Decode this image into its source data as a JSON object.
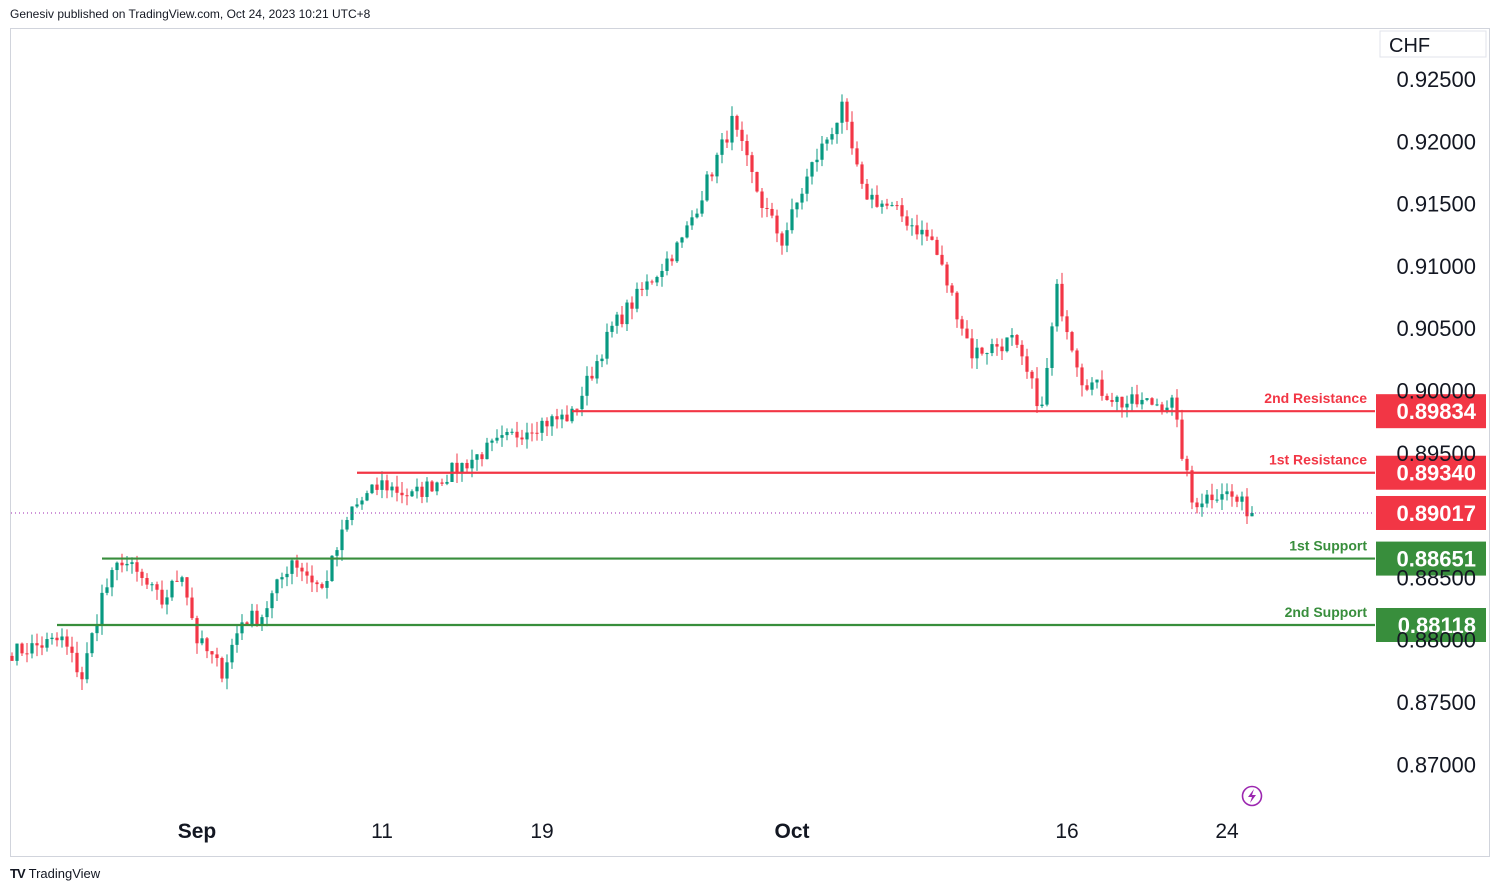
{
  "header": {
    "publisher_text": "Genesiv published on TradingView.com, Oct 24, 2023 10:21 UTC+8"
  },
  "footer": {
    "brand": "TradingView",
    "logo_icon": "tradingview-logo-icon"
  },
  "colors": {
    "up": "#089981",
    "down": "#f23645",
    "resistance": "#f23645",
    "support": "#388e3c",
    "last_price": "#f23645"
  },
  "chart_data": {
    "type": "candlestick",
    "currency_label": "CHF",
    "y_ticks": [
      "0.92500",
      "0.92000",
      "0.91500",
      "0.91000",
      "0.90500",
      "0.90000",
      "0.89500",
      "0.88500",
      "0.88000",
      "0.87500",
      "0.87000"
    ],
    "ylim": [
      0.868,
      0.9265
    ],
    "x_ticks": [
      {
        "label": "Sep",
        "bold": true,
        "bar": 37
      },
      {
        "label": "11",
        "bold": false,
        "bar": 74
      },
      {
        "label": "19",
        "bold": false,
        "bar": 106
      },
      {
        "label": "Oct",
        "bold": true,
        "bar": 156
      },
      {
        "label": "16",
        "bold": false,
        "bar": 211
      },
      {
        "label": "24",
        "bold": false,
        "bar": 243
      }
    ],
    "levels": [
      {
        "name": "2nd Resistance",
        "value": "0.89834",
        "kind": "resistance"
      },
      {
        "name": "1st Resistance",
        "value": "0.89340",
        "kind": "resistance"
      },
      {
        "name": "1st Support",
        "value": "0.88651",
        "kind": "support"
      },
      {
        "name": "2nd Support",
        "value": "0.88118",
        "kind": "support"
      }
    ],
    "last_price": "0.89017",
    "anchors": [
      [
        0,
        0.879
      ],
      [
        10,
        0.88
      ],
      [
        14,
        0.877
      ],
      [
        18,
        0.8835
      ],
      [
        22,
        0.8865
      ],
      [
        30,
        0.883
      ],
      [
        34,
        0.8855
      ],
      [
        37,
        0.88
      ],
      [
        42,
        0.8775
      ],
      [
        46,
        0.8815
      ],
      [
        50,
        0.882
      ],
      [
        56,
        0.8865
      ],
      [
        62,
        0.884
      ],
      [
        68,
        0.8905
      ],
      [
        74,
        0.8925
      ],
      [
        80,
        0.8915
      ],
      [
        86,
        0.893
      ],
      [
        94,
        0.895
      ],
      [
        104,
        0.8972
      ],
      [
        112,
        0.898
      ],
      [
        120,
        0.905
      ],
      [
        134,
        0.912
      ],
      [
        144,
        0.9215
      ],
      [
        150,
        0.915
      ],
      [
        154,
        0.912
      ],
      [
        160,
        0.918
      ],
      [
        166,
        0.9225
      ],
      [
        170,
        0.916
      ],
      [
        178,
        0.914
      ],
      [
        184,
        0.912
      ],
      [
        192,
        0.903
      ],
      [
        200,
        0.904
      ],
      [
        206,
        0.8985
      ],
      [
        209,
        0.908
      ],
      [
        214,
        0.901
      ],
      [
        222,
        0.899
      ],
      [
        232,
        0.899
      ],
      [
        236,
        0.891
      ],
      [
        242,
        0.892
      ],
      [
        248,
        0.8902
      ]
    ]
  }
}
